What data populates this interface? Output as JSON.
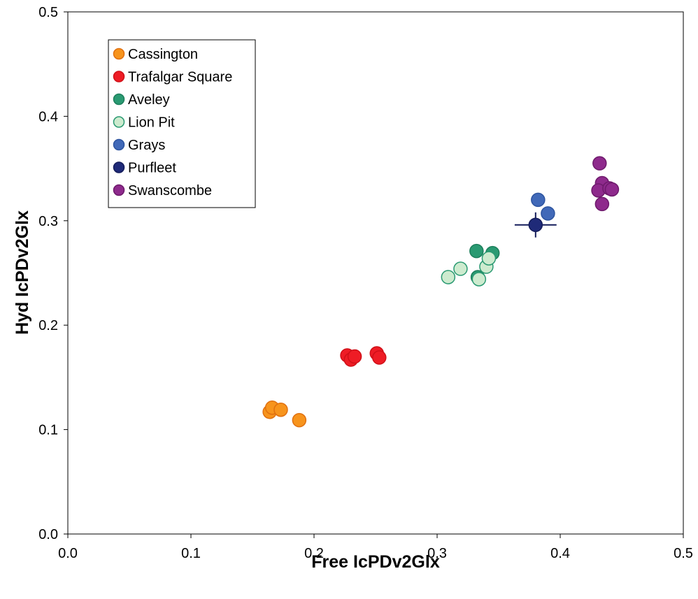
{
  "chart_data": {
    "type": "scatter",
    "title": "",
    "xlabel": "Free IcPDv2Glx",
    "ylabel": "Hyd IcPDv2Glx",
    "xlim": [
      0.0,
      0.5
    ],
    "ylim": [
      0.0,
      0.5
    ],
    "x_ticks": [
      "0.0",
      "0.1",
      "0.2",
      "0.3",
      "0.4",
      "0.5"
    ],
    "y_ticks": [
      "0.0",
      "0.1",
      "0.2",
      "0.3",
      "0.4",
      "0.5"
    ],
    "grid": false,
    "legend_position": "top-left",
    "series": [
      {
        "name": "Cassington",
        "color": "#F7941D",
        "stroke": "#E07010",
        "points": [
          {
            "x": 0.164,
            "y": 0.117
          },
          {
            "x": 0.166,
            "y": 0.121
          },
          {
            "x": 0.173,
            "y": 0.119
          },
          {
            "x": 0.188,
            "y": 0.109
          }
        ]
      },
      {
        "name": "Trafalgar Square",
        "color": "#EE1C25",
        "stroke": "#D01018",
        "points": [
          {
            "x": 0.227,
            "y": 0.171
          },
          {
            "x": 0.23,
            "y": 0.167
          },
          {
            "x": 0.233,
            "y": 0.17
          },
          {
            "x": 0.251,
            "y": 0.173
          },
          {
            "x": 0.253,
            "y": 0.169
          }
        ]
      },
      {
        "name": "Aveley",
        "color": "#2A9A72",
        "stroke": "#1D7F5C",
        "points": [
          {
            "x": 0.332,
            "y": 0.271
          },
          {
            "x": 0.345,
            "y": 0.269
          },
          {
            "x": 0.333,
            "y": 0.246
          }
        ]
      },
      {
        "name": "Lion Pit",
        "color": "#CDEBCF",
        "stroke": "#2A9A72",
        "points": [
          {
            "x": 0.309,
            "y": 0.246
          },
          {
            "x": 0.319,
            "y": 0.254
          },
          {
            "x": 0.334,
            "y": 0.244
          },
          {
            "x": 0.34,
            "y": 0.256
          },
          {
            "x": 0.342,
            "y": 0.264
          }
        ]
      },
      {
        "name": "Grays",
        "color": "#4169B8",
        "stroke": "#2E55A0",
        "points": [
          {
            "x": 0.382,
            "y": 0.32
          },
          {
            "x": 0.39,
            "y": 0.307
          }
        ]
      },
      {
        "name": "Purfleet",
        "color": "#1F2A78",
        "stroke": "#141C5A",
        "error_bar": {
          "xerr": 0.017,
          "yerr": 0.012
        },
        "points": [
          {
            "x": 0.38,
            "y": 0.296
          }
        ]
      },
      {
        "name": "Swanscombe",
        "color": "#8E2A8C",
        "stroke": "#6E1A6C",
        "points": [
          {
            "x": 0.432,
            "y": 0.355
          },
          {
            "x": 0.434,
            "y": 0.336
          },
          {
            "x": 0.431,
            "y": 0.329
          },
          {
            "x": 0.44,
            "y": 0.331
          },
          {
            "x": 0.442,
            "y": 0.33
          },
          {
            "x": 0.434,
            "y": 0.316
          }
        ]
      }
    ]
  }
}
